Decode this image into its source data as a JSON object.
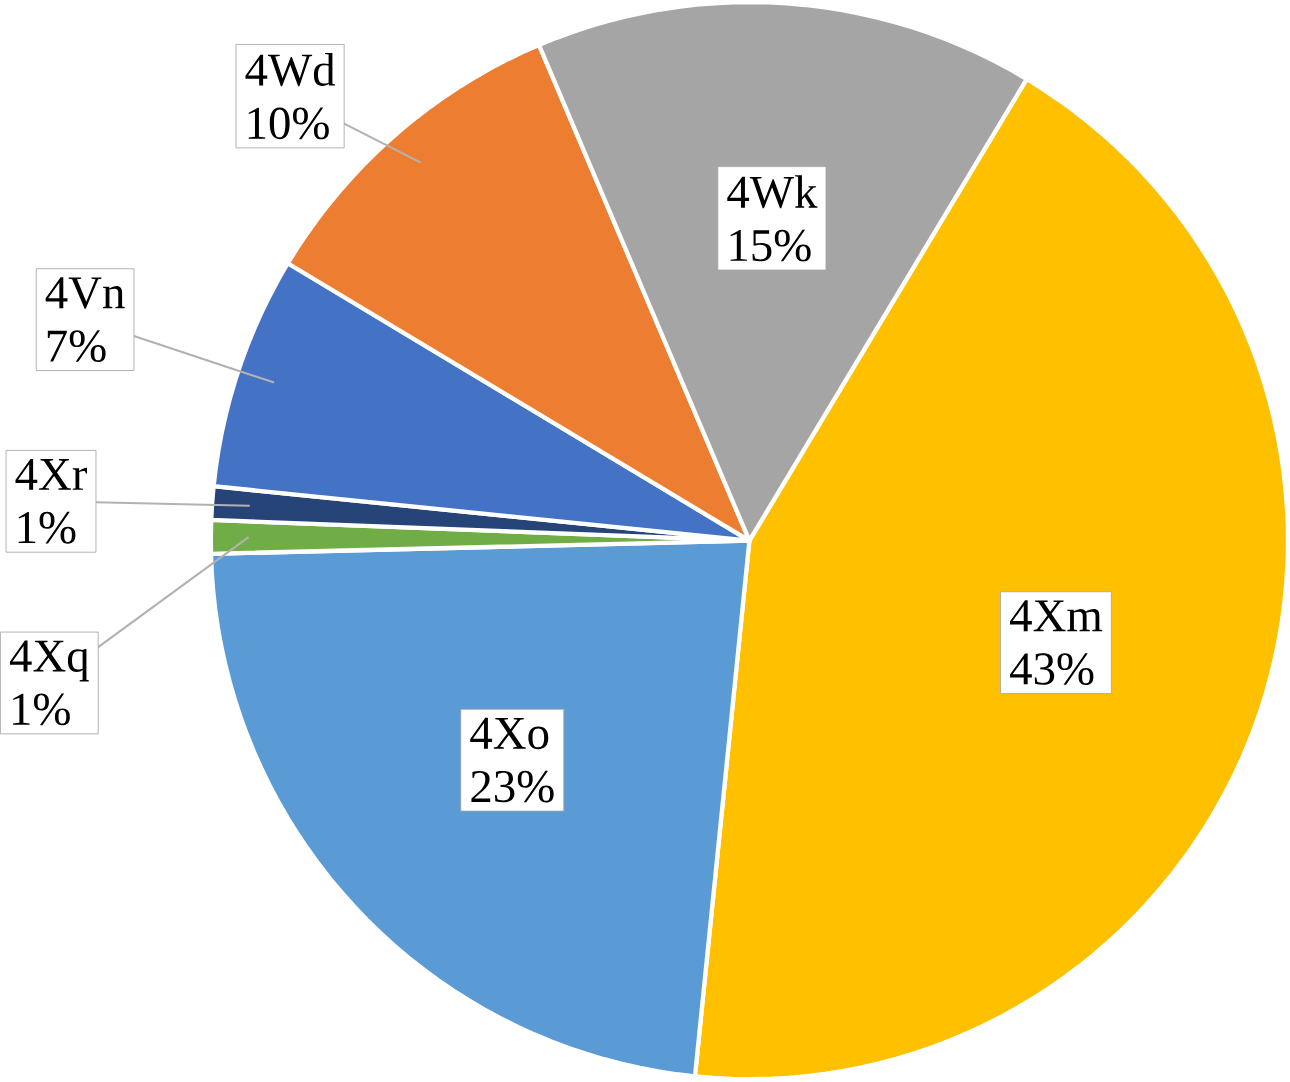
{
  "chart_data": {
    "type": "pie",
    "categories": [
      "4Xm",
      "4Xo",
      "4Xq",
      "4Xr",
      "4Vn",
      "4Wd",
      "4Wk"
    ],
    "values": [
      43,
      23,
      1,
      1,
      7,
      10,
      15
    ],
    "value_labels": [
      "43%",
      "23%",
      "1%",
      "1%",
      "7%",
      "10%",
      "15%"
    ],
    "colors": [
      "#ffc000",
      "#5b9bd5",
      "#70ad47",
      "#264478",
      "#4472c4",
      "#ed7d31",
      "#a5a5a5"
    ]
  }
}
